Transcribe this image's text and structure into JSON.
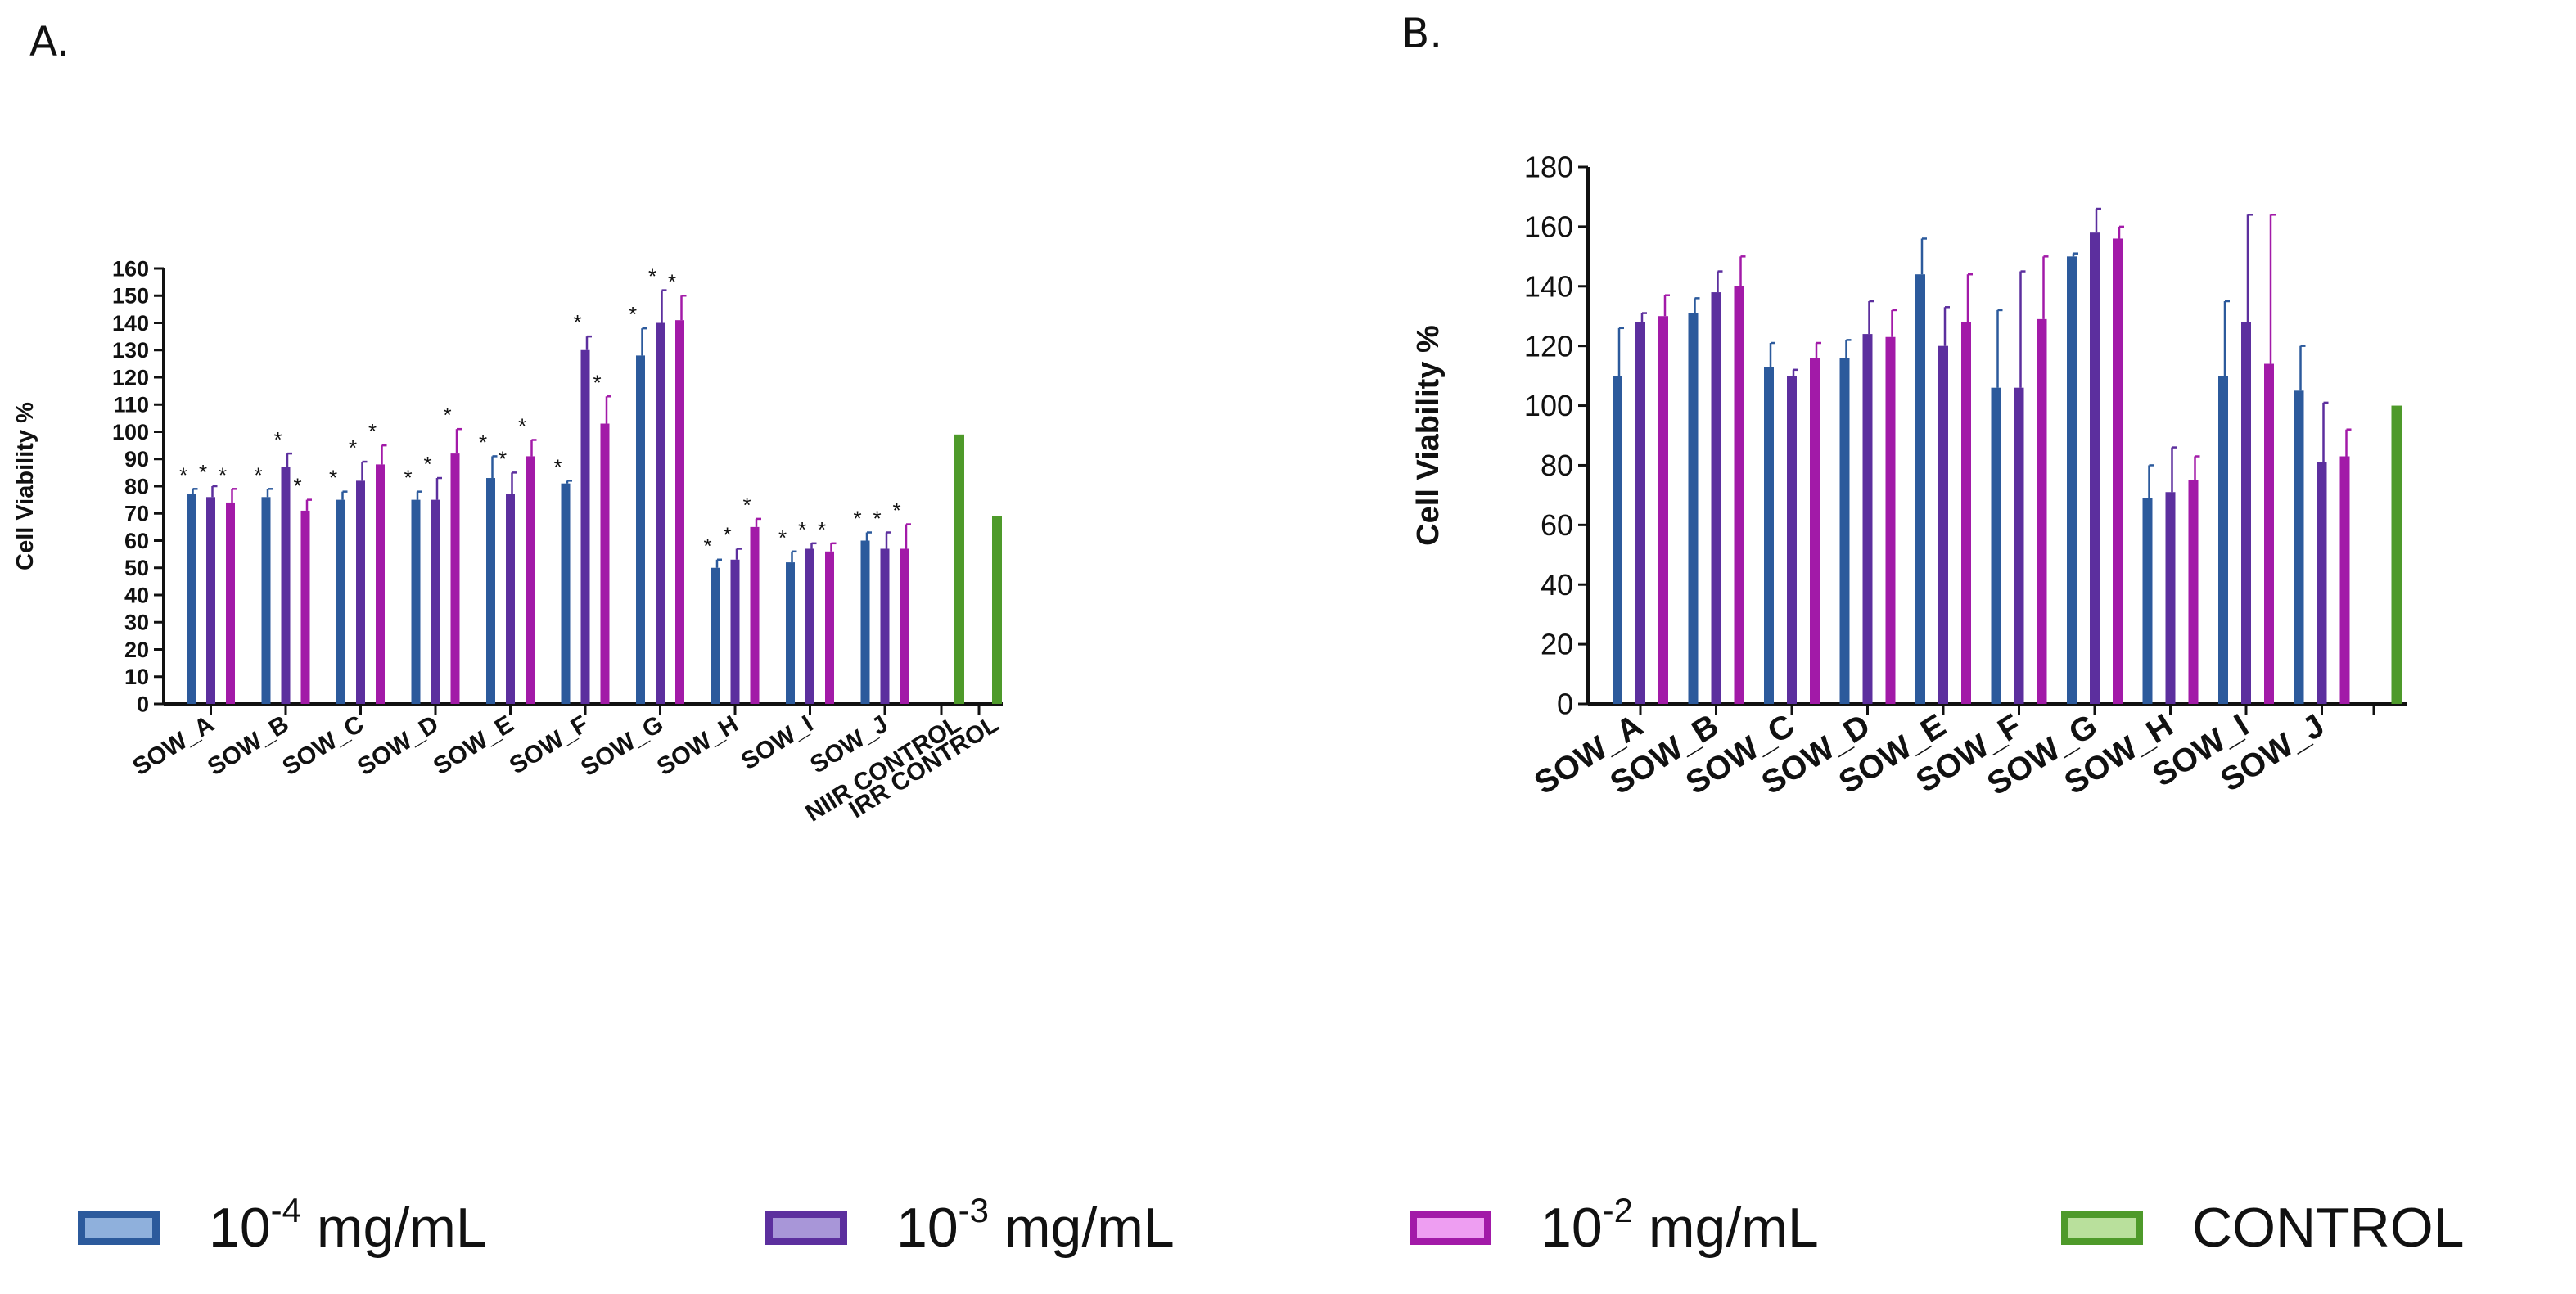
{
  "panels": {
    "a_label": "A.",
    "b_label": "B."
  },
  "colors": {
    "s1": "#2c5a9c",
    "s1_fill": "#8fb0dc",
    "s2": "#5c2f9e",
    "s2_fill": "#a896d8",
    "s3": "#a21aa8",
    "s3_fill": "#ee9ef2",
    "control": "#4e9a2a",
    "control_fill": "#b9e09c"
  },
  "legend": [
    {
      "base": "10",
      "exp": "-4",
      "unit": " mg/mL",
      "color_key": "s1"
    },
    {
      "base": "10",
      "exp": "-3",
      "unit": " mg/mL",
      "color_key": "s2"
    },
    {
      "base": "10",
      "exp": "-2",
      "unit": " mg/mL",
      "color_key": "s3"
    },
    {
      "base": "CONTROL",
      "exp": "",
      "unit": "",
      "color_key": "control"
    }
  ],
  "chart_data": [
    {
      "id": "A",
      "type": "bar",
      "title": "",
      "xlabel": "",
      "ylabel": "Cell Viability %",
      "ylim": [
        0,
        160
      ],
      "yticks": [
        0,
        10,
        20,
        30,
        40,
        50,
        60,
        70,
        80,
        90,
        100,
        110,
        120,
        130,
        140,
        150,
        160
      ],
      "categories": [
        "SOW_A",
        "SOW_B",
        "SOW_C",
        "SOW_D",
        "SOW_E",
        "SOW_F",
        "SOW_G",
        "SOW_H",
        "SOW_I",
        "SOW_J"
      ],
      "series": [
        {
          "name": "10-4 mg/mL",
          "color_key": "s1",
          "values": [
            77,
            76,
            75,
            75,
            83,
            81,
            128,
            50,
            52,
            60
          ],
          "errors": [
            2,
            3,
            3,
            3,
            8,
            1,
            10,
            3,
            4,
            3
          ],
          "significant": [
            true,
            true,
            true,
            true,
            true,
            true,
            true,
            true,
            true,
            true
          ]
        },
        {
          "name": "10-3 mg/mL",
          "color_key": "s2",
          "values": [
            76,
            87,
            82,
            75,
            77,
            130,
            140,
            53,
            57,
            57
          ],
          "errors": [
            4,
            5,
            7,
            8,
            8,
            5,
            12,
            4,
            2,
            6
          ],
          "significant": [
            true,
            true,
            true,
            true,
            true,
            true,
            true,
            true,
            true,
            true
          ]
        },
        {
          "name": "10-2 mg/mL",
          "color_key": "s3",
          "values": [
            74,
            71,
            88,
            92,
            91,
            103,
            141,
            65,
            56,
            57
          ],
          "errors": [
            5,
            4,
            7,
            9,
            6,
            10,
            9,
            3,
            3,
            9
          ],
          "significant": [
            true,
            true,
            true,
            true,
            true,
            true,
            true,
            true,
            true,
            true
          ]
        }
      ],
      "controls": [
        {
          "label": "NIIR CONTROL",
          "value": 99,
          "color_key": "control"
        },
        {
          "label": "IRR CONTROL",
          "value": 69,
          "color_key": "control"
        }
      ],
      "significance_marker": "*"
    },
    {
      "id": "B",
      "type": "bar",
      "title": "",
      "xlabel": "",
      "ylabel": "Cell Viability %",
      "ylim": [
        0,
        180
      ],
      "yticks": [
        0,
        20,
        40,
        60,
        80,
        100,
        120,
        140,
        160,
        180
      ],
      "categories": [
        "SOW_A",
        "SOW_B",
        "SOW_C",
        "SOW_D",
        "SOW_E",
        "SOW_F",
        "SOW_G",
        "SOW_H",
        "SOW_I",
        "SOW_J"
      ],
      "series": [
        {
          "name": "10-4 mg/mL",
          "color_key": "s1",
          "values": [
            110,
            131,
            113,
            116,
            144,
            106,
            150,
            69,
            110,
            105
          ],
          "errors": [
            16,
            5,
            8,
            6,
            12,
            26,
            1,
            11,
            25,
            15
          ]
        },
        {
          "name": "10-3 mg/mL",
          "color_key": "s2",
          "values": [
            128,
            138,
            110,
            124,
            120,
            106,
            158,
            71,
            128,
            81
          ],
          "errors": [
            3,
            7,
            2,
            11,
            13,
            39,
            8,
            15,
            36,
            20
          ]
        },
        {
          "name": "10-2 mg/mL",
          "color_key": "s3",
          "values": [
            130,
            140,
            116,
            123,
            128,
            129,
            156,
            75,
            114,
            83
          ],
          "errors": [
            7,
            10,
            5,
            9,
            16,
            21,
            4,
            8,
            50,
            9
          ]
        }
      ],
      "controls": [
        {
          "label": "",
          "value": 100,
          "color_key": "control"
        }
      ]
    }
  ]
}
